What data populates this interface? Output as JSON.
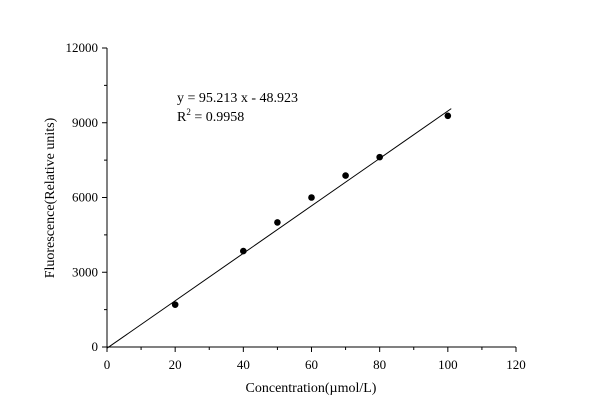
{
  "chart_data": {
    "type": "scatter",
    "xlabel": "Concentration(µmol/L)",
    "ylabel": "Fluorescence(Relative units)",
    "xlim": [
      0,
      120
    ],
    "ylim": [
      0,
      12000
    ],
    "xticks": [
      0,
      20,
      40,
      60,
      80,
      100,
      120
    ],
    "yticks": [
      0,
      3000,
      6000,
      9000,
      12000
    ],
    "grid": false,
    "series": [
      {
        "x": [
          20,
          40,
          50,
          60,
          70,
          80,
          100
        ],
        "y": [
          1700,
          3850,
          5000,
          6000,
          6880,
          7620,
          9280
        ]
      }
    ],
    "fit_line": {
      "slope": 95.213,
      "intercept": -48.923,
      "x_range": [
        0,
        101
      ]
    },
    "annotations": {
      "equation": "y = 95.213 x - 48.923",
      "r2_prefix": "R",
      "r2_sup": "2",
      "r2_value": " = 0.9958"
    }
  }
}
